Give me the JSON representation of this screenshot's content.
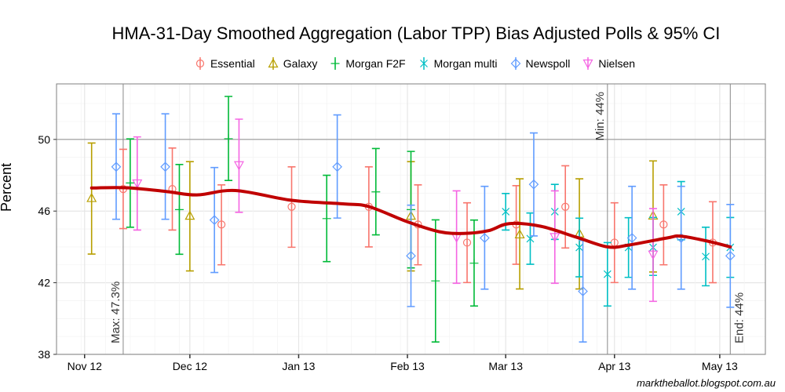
{
  "chart_data": {
    "type": "scatter",
    "title": "HMA-31-Day Smoothed Aggregation (Labor TPP) Bias Adjusted Polls & 95% CI",
    "ylabel": "Percent",
    "xlabel": "",
    "ylim": [
      38,
      53.1
    ],
    "xlim": [
      "2012-10-24",
      "2013-05-14"
    ],
    "yticks": [
      38,
      42,
      46,
      50
    ],
    "xticks": [
      {
        "date": "2012-11-01",
        "label": "Nov 12"
      },
      {
        "date": "2012-12-01",
        "label": "Dec 12"
      },
      {
        "date": "2013-01-01",
        "label": "Jan 13"
      },
      {
        "date": "2013-02-01",
        "label": "Feb 13"
      },
      {
        "date": "2013-03-01",
        "label": "Mar 13"
      },
      {
        "date": "2013-04-01",
        "label": "Apr 13"
      },
      {
        "date": "2013-05-01",
        "label": "May 13"
      }
    ],
    "grid": true,
    "legend_position": "top",
    "smooth_color": "#C00000",
    "smooth": [
      [
        "2012-11-03",
        47.29
      ],
      [
        "2012-11-13",
        47.3
      ],
      [
        "2012-11-24",
        47.1
      ],
      [
        "2012-12-03",
        46.9
      ],
      [
        "2012-12-14",
        47.15
      ],
      [
        "2012-12-30",
        46.6
      ],
      [
        "2013-01-14",
        46.4
      ],
      [
        "2013-01-21",
        46.25
      ],
      [
        "2013-02-01",
        45.4
      ],
      [
        "2013-02-10",
        44.85
      ],
      [
        "2013-02-17",
        44.75
      ],
      [
        "2013-02-24",
        44.9
      ],
      [
        "2013-03-02",
        45.3
      ],
      [
        "2013-03-11",
        45.15
      ],
      [
        "2013-03-21",
        44.55
      ],
      [
        "2013-03-30",
        44.0
      ],
      [
        "2013-04-05",
        44.1
      ],
      [
        "2013-04-16",
        44.5
      ],
      [
        "2013-04-20",
        44.6
      ],
      [
        "2013-04-28",
        44.3
      ],
      [
        "2013-05-04",
        44.0
      ]
    ],
    "hline": 50,
    "annotations": [
      {
        "date": "2012-11-12",
        "text": "Max: 47.3%",
        "pos": "bottom"
      },
      {
        "date": "2013-03-30",
        "text": "Min: 44%",
        "pos": "top"
      },
      {
        "date": "2013-05-04",
        "text": "End: 44%",
        "pos": "bottom"
      }
    ],
    "series": [
      {
        "name": "Essential",
        "color": "#F8766D",
        "shape": "circle",
        "points": [
          [
            "2012-11-12",
            47.23,
            45.02,
            49.45
          ],
          [
            "2012-11-26",
            47.23,
            44.94,
            49.52
          ],
          [
            "2012-12-10",
            45.25,
            43.0,
            47.46
          ],
          [
            "2012-12-30",
            46.24,
            43.98,
            48.47
          ],
          [
            "2013-01-21",
            46.24,
            44.0,
            48.47
          ],
          [
            "2013-02-04",
            45.25,
            43.0,
            47.46
          ],
          [
            "2013-02-18",
            44.24,
            42.01,
            46.46
          ],
          [
            "2013-03-04",
            45.25,
            43.03,
            47.42
          ],
          [
            "2013-03-18",
            46.24,
            43.94,
            48.53
          ],
          [
            "2013-04-01",
            44.24,
            42.01,
            46.46
          ],
          [
            "2013-04-15",
            45.25,
            43.0,
            47.46
          ],
          [
            "2013-04-29",
            44.24,
            42.0,
            46.52
          ]
        ]
      },
      {
        "name": "Galaxy",
        "color": "#B79F00",
        "shape": "triangle",
        "points": [
          [
            "2012-11-03",
            46.73,
            43.6,
            49.8
          ],
          [
            "2012-12-01",
            45.74,
            42.66,
            48.76
          ],
          [
            "2013-02-02",
            45.74,
            42.66,
            48.76
          ],
          [
            "2013-03-05",
            44.7,
            41.65,
            47.8
          ],
          [
            "2013-03-22",
            44.75,
            41.65,
            47.8
          ],
          [
            "2013-04-12",
            45.75,
            42.6,
            48.8
          ]
        ]
      },
      {
        "name": "Morgan F2F",
        "color": "#00BA38",
        "shape": "plus",
        "points": [
          [
            "2012-11-14",
            47.57,
            45.1,
            50.03
          ],
          [
            "2012-11-28",
            46.08,
            43.59,
            48.6
          ],
          [
            "2012-12-12",
            50.04,
            47.71,
            52.4
          ],
          [
            "2013-01-09",
            45.58,
            43.18,
            48.0
          ],
          [
            "2013-01-23",
            47.07,
            44.67,
            49.49
          ],
          [
            "2013-02-02",
            46.08,
            42.83,
            49.33
          ],
          [
            "2013-02-09",
            42.1,
            38.69,
            45.51
          ],
          [
            "2013-02-20",
            43.09,
            40.7,
            45.5
          ]
        ]
      },
      {
        "name": "Morgan multi",
        "color": "#00BFC4",
        "shape": "cross",
        "points": [
          [
            "2013-03-01",
            45.97,
            44.94,
            46.98
          ],
          [
            "2013-03-08",
            44.46,
            43.03,
            45.89
          ],
          [
            "2013-03-15",
            45.97,
            44.42,
            47.49
          ],
          [
            "2013-03-22",
            43.97,
            42.33,
            45.6
          ],
          [
            "2013-03-30",
            42.48,
            40.7,
            44.24
          ],
          [
            "2013-04-05",
            43.97,
            42.3,
            45.63
          ],
          [
            "2013-04-12",
            43.97,
            42.41,
            45.64
          ],
          [
            "2013-04-20",
            45.97,
            44.4,
            47.65
          ],
          [
            "2013-04-27",
            43.46,
            41.83,
            45.1
          ],
          [
            "2013-05-04",
            43.97,
            42.3,
            45.64
          ]
        ]
      },
      {
        "name": "Newspoll",
        "color": "#619CFF",
        "shape": "diamond",
        "points": [
          [
            "2012-11-10",
            48.47,
            45.54,
            51.43
          ],
          [
            "2012-11-24",
            48.47,
            45.54,
            51.43
          ],
          [
            "2012-12-08",
            45.5,
            42.57,
            48.43
          ],
          [
            "2013-01-12",
            48.47,
            45.61,
            51.37
          ],
          [
            "2013-02-02",
            43.5,
            40.67,
            46.33
          ],
          [
            "2013-02-23",
            44.5,
            41.64,
            47.38
          ],
          [
            "2013-03-09",
            47.49,
            44.61,
            50.36
          ],
          [
            "2013-03-23",
            41.52,
            38.69,
            44.36
          ],
          [
            "2013-04-06",
            44.5,
            41.64,
            47.38
          ],
          [
            "2013-04-20",
            44.5,
            41.64,
            47.38
          ],
          [
            "2013-05-04",
            43.5,
            40.63,
            46.37
          ]
        ]
      },
      {
        "name": "Nielsen",
        "color": "#F564E3",
        "shape": "triangle-down",
        "points": [
          [
            "2012-11-16",
            47.54,
            44.94,
            50.14
          ],
          [
            "2012-12-15",
            48.56,
            45.93,
            51.13
          ],
          [
            "2013-02-15",
            44.52,
            41.97,
            47.13
          ],
          [
            "2013-03-15",
            44.55,
            41.97,
            47.13
          ],
          [
            "2013-04-12",
            43.57,
            40.96,
            46.14
          ]
        ]
      }
    ]
  },
  "footer": "marktheballot.blogspot.com.au"
}
